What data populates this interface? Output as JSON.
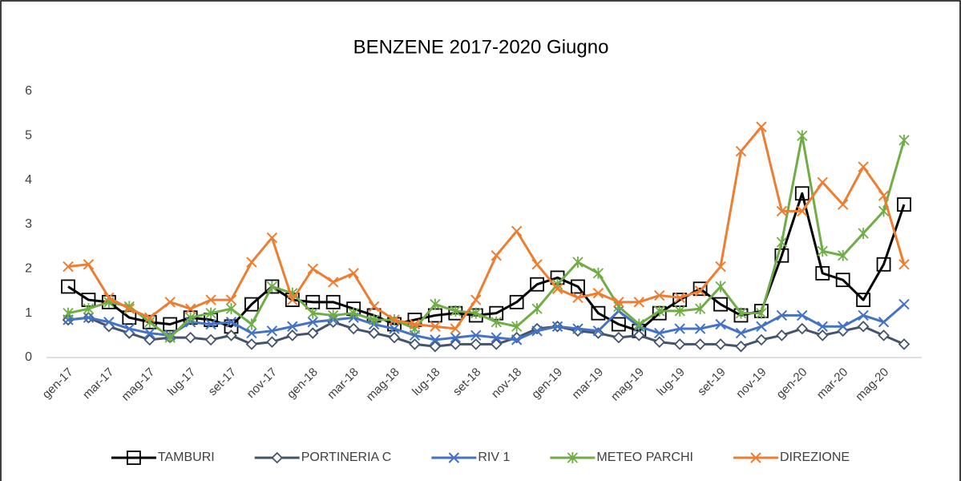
{
  "chart_data": {
    "type": "line",
    "title": "BENZENE 2017-2020 Giugno",
    "categories": [
      "gen-17",
      null,
      "mar-17",
      null,
      "mag-17",
      null,
      "lug-17",
      null,
      "set-17",
      null,
      "nov-17",
      null,
      "gen-18",
      null,
      "mar-18",
      null,
      "mag-18",
      null,
      "lug-18",
      null,
      "set-18",
      null,
      "nov-18",
      null,
      "gen-19",
      null,
      "mar-19",
      null,
      "mag-19",
      null,
      "lug-19",
      null,
      "set-19",
      null,
      "nov-19",
      null,
      "gen-20",
      null,
      "mar-20",
      null,
      "mag-20",
      null
    ],
    "ylim": [
      0,
      6
    ],
    "yticks": [
      0,
      1,
      2,
      3,
      4,
      5,
      6
    ],
    "grid": false,
    "legend": "bottom",
    "series": [
      {
        "name": "TAMBURI",
        "color": "#000000",
        "marker": "square",
        "values": [
          1.6,
          1.3,
          1.25,
          0.9,
          0.8,
          0.75,
          0.9,
          0.85,
          0.7,
          1.2,
          1.6,
          1.3,
          1.25,
          1.25,
          1.1,
          0.95,
          0.75,
          0.85,
          0.95,
          1.0,
          0.95,
          1.0,
          1.25,
          1.65,
          1.8,
          1.6,
          1.0,
          0.75,
          0.6,
          1.0,
          1.3,
          1.55,
          1.2,
          0.95,
          1.05,
          2.3,
          3.7,
          1.9,
          1.75,
          1.3,
          2.1,
          3.45
        ]
      },
      {
        "name": "PORTINERIA C",
        "color": "#44546a",
        "marker": "diamond",
        "values": [
          0.85,
          0.9,
          0.7,
          0.55,
          0.4,
          0.45,
          0.45,
          0.4,
          0.5,
          0.3,
          0.35,
          0.5,
          0.55,
          0.8,
          0.65,
          0.55,
          0.45,
          0.3,
          0.25,
          0.3,
          0.3,
          0.3,
          0.45,
          0.65,
          0.7,
          0.6,
          0.55,
          0.45,
          0.5,
          0.35,
          0.3,
          0.3,
          0.3,
          0.25,
          0.4,
          0.5,
          0.65,
          0.5,
          0.6,
          0.7,
          0.5,
          0.3
        ]
      },
      {
        "name": "RIV 1",
        "color": "#4472c4",
        "marker": "x",
        "values": [
          0.85,
          0.9,
          0.8,
          0.65,
          0.55,
          0.5,
          0.8,
          0.75,
          0.8,
          0.55,
          0.6,
          0.7,
          0.8,
          0.85,
          0.9,
          0.75,
          0.65,
          0.5,
          0.4,
          0.45,
          0.5,
          0.45,
          0.4,
          0.6,
          0.7,
          0.65,
          0.6,
          1.05,
          0.7,
          0.55,
          0.65,
          0.65,
          0.75,
          0.55,
          0.7,
          0.95,
          0.95,
          0.7,
          0.7,
          0.95,
          0.8,
          1.2
        ]
      },
      {
        "name": "METEO PARCHI",
        "color": "#70ad47",
        "marker": "asterisk",
        "values": [
          1.0,
          1.1,
          1.25,
          1.15,
          0.8,
          0.45,
          0.9,
          1.0,
          1.1,
          0.75,
          1.6,
          1.45,
          1.0,
          0.95,
          1.0,
          0.85,
          0.85,
          0.65,
          1.2,
          1.05,
          1.0,
          0.8,
          0.7,
          1.1,
          1.65,
          2.15,
          1.9,
          1.15,
          0.75,
          1.05,
          1.05,
          1.1,
          1.6,
          1.0,
          1.0,
          2.6,
          5.0,
          2.4,
          2.3,
          2.8,
          3.3,
          4.9
        ]
      },
      {
        "name": "DIREZIONE",
        "color": "#ed7d31",
        "marker": "x",
        "values": [
          2.05,
          2.1,
          1.35,
          1.1,
          0.9,
          1.25,
          1.1,
          1.3,
          1.3,
          2.15,
          2.7,
          1.3,
          2.0,
          1.7,
          1.9,
          1.15,
          0.85,
          0.75,
          0.7,
          0.65,
          1.3,
          2.3,
          2.85,
          2.1,
          1.55,
          1.35,
          1.45,
          1.25,
          1.25,
          1.4,
          1.35,
          1.5,
          2.05,
          4.65,
          5.2,
          3.3,
          3.3,
          3.95,
          3.45,
          4.3,
          3.65,
          2.1
        ]
      }
    ]
  }
}
